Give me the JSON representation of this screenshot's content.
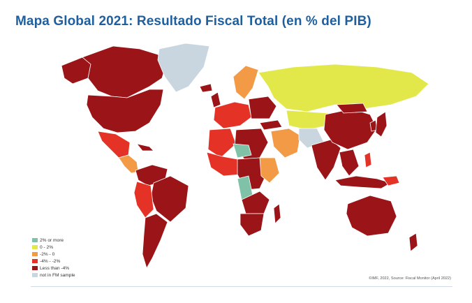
{
  "title": "Mapa Global 2021: Resultado Fiscal Total (en % del PIB)",
  "legend": [
    {
      "label": "2% or more",
      "color": "#7fc2a8"
    },
    {
      "label": "0 - 2%",
      "color": "#e3e84a"
    },
    {
      "label": "-2% - 0",
      "color": "#f29a45"
    },
    {
      "label": "-4% - -2%",
      "color": "#e53227"
    },
    {
      "label": "Less than -4%",
      "color": "#9b1418"
    },
    {
      "label": "not in FM sample",
      "color": "#c9d6df"
    }
  ],
  "source": "©IMF, 2022, Source: Fiscal Monitor (April 2022)"
}
